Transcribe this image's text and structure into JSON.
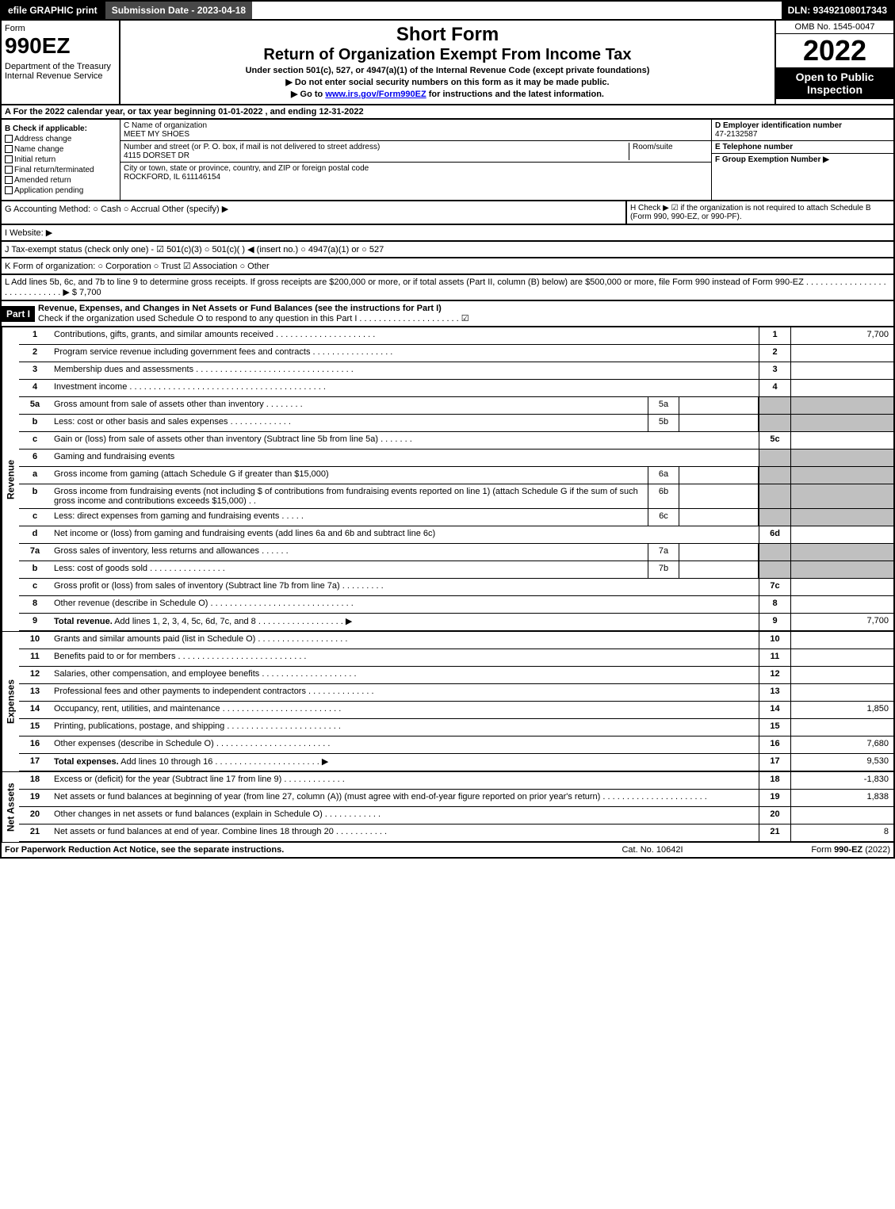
{
  "top": {
    "efile": "efile GRAPHIC print",
    "submission": "Submission Date - 2023-04-18",
    "dln": "DLN: 93492108017343"
  },
  "header": {
    "form_label": "Form",
    "form_number": "990EZ",
    "dept": "Department of the Treasury\nInternal Revenue Service",
    "title1": "Short Form",
    "title2": "Return of Organization Exempt From Income Tax",
    "subtitle": "Under section 501(c), 527, or 4947(a)(1) of the Internal Revenue Code (except private foundations)",
    "note1": "▶ Do not enter social security numbers on this form as it may be made public.",
    "note2": "▶ Go to www.irs.gov/Form990EZ for instructions and the latest information.",
    "omb": "OMB No. 1545-0047",
    "year": "2022",
    "open": "Open to Public Inspection"
  },
  "section_a": "A  For the 2022 calendar year, or tax year beginning 01-01-2022 , and ending 12-31-2022",
  "col_b": {
    "title": "B  Check if applicable:",
    "items": [
      "Address change",
      "Name change",
      "Initial return",
      "Final return/terminated",
      "Amended return",
      "Application pending"
    ]
  },
  "col_c": {
    "name_label": "C Name of organization",
    "name": "MEET MY SHOES",
    "addr_label": "Number and street (or P. O. box, if mail is not delivered to street address)",
    "addr": "4115 DORSET DR",
    "room_label": "Room/suite",
    "city_label": "City or town, state or province, country, and ZIP or foreign postal code",
    "city": "ROCKFORD, IL  611146154"
  },
  "col_d": {
    "d_label": "D Employer identification number",
    "d_val": "47-2132587",
    "e_label": "E Telephone number",
    "e_val": "",
    "f_label": "F Group Exemption Number  ▶",
    "f_val": ""
  },
  "line_g": "G Accounting Method:   ○ Cash   ○ Accrual   Other (specify) ▶",
  "line_h": "H  Check ▶ ☑ if the organization is not required to attach Schedule B (Form 990, 990-EZ, or 990-PF).",
  "line_i": "I Website: ▶",
  "line_j": "J Tax-exempt status (check only one) - ☑ 501(c)(3) ○ 501(c)( ) ◀ (insert no.) ○ 4947(a)(1) or ○ 527",
  "line_k": "K Form of organization:   ○ Corporation   ○ Trust   ☑ Association   ○ Other",
  "line_l": "L Add lines 5b, 6c, and 7b to line 9 to determine gross receipts. If gross receipts are $200,000 or more, or if total assets (Part II, column (B) below) are $500,000 or more, file Form 990 instead of Form 990-EZ . . . . . . . . . . . . . . . . . . . . . . . . . . . . . ▶ $ 7,700",
  "part1": {
    "header": "Part I",
    "title": "Revenue, Expenses, and Changes in Net Assets or Fund Balances (see the instructions for Part I)",
    "check": "Check if the organization used Schedule O to respond to any question in this Part I . . . . . . . . . . . . . . . . . . . . . ☑"
  },
  "rows": [
    {
      "n": "1",
      "d": "Contributions, gifts, grants, and similar amounts received . . . . . . . . . . . . . . . . . . . . .",
      "mn": "1",
      "mv": "7,700"
    },
    {
      "n": "2",
      "d": "Program service revenue including government fees and contracts . . . . . . . . . . . . . . . . .",
      "mn": "2",
      "mv": ""
    },
    {
      "n": "3",
      "d": "Membership dues and assessments . . . . . . . . . . . . . . . . . . . . . . . . . . . . . . . . .",
      "mn": "3",
      "mv": ""
    },
    {
      "n": "4",
      "d": "Investment income . . . . . . . . . . . . . . . . . . . . . . . . . . . . . . . . . . . . . . . . .",
      "mn": "4",
      "mv": ""
    },
    {
      "n": "5a",
      "d": "Gross amount from sale of assets other than inventory . . . . . . . .",
      "sn": "5a",
      "sv": "",
      "shaded": true
    },
    {
      "n": "b",
      "d": "Less: cost or other basis and sales expenses . . . . . . . . . . . . .",
      "sn": "5b",
      "sv": "",
      "shaded": true
    },
    {
      "n": "c",
      "d": "Gain or (loss) from sale of assets other than inventory (Subtract line 5b from line 5a) . . . . . . .",
      "mn": "5c",
      "mv": ""
    },
    {
      "n": "6",
      "d": "Gaming and fundraising events",
      "shaded": true
    },
    {
      "n": "a",
      "d": "Gross income from gaming (attach Schedule G if greater than $15,000)",
      "sn": "6a",
      "sv": "",
      "shaded": true
    },
    {
      "n": "b",
      "d": "Gross income from fundraising events (not including $                    of contributions from fundraising events reported on line 1) (attach Schedule G if the sum of such gross income and contributions exceeds $15,000)    . .",
      "sn": "6b",
      "sv": "",
      "shaded": true
    },
    {
      "n": "c",
      "d": "Less: direct expenses from gaming and fundraising events    . . . . .",
      "sn": "6c",
      "sv": "",
      "shaded": true
    },
    {
      "n": "d",
      "d": "Net income or (loss) from gaming and fundraising events (add lines 6a and 6b and subtract line 6c)",
      "mn": "6d",
      "mv": ""
    },
    {
      "n": "7a",
      "d": "Gross sales of inventory, less returns and allowances . . . . . .",
      "sn": "7a",
      "sv": "",
      "shaded": true
    },
    {
      "n": "b",
      "d": "Less: cost of goods sold        . . . . . . . . . . . . . . . .",
      "sn": "7b",
      "sv": "",
      "shaded": true
    },
    {
      "n": "c",
      "d": "Gross profit or (loss) from sales of inventory (Subtract line 7b from line 7a) . . . . . . . . .",
      "mn": "7c",
      "mv": ""
    },
    {
      "n": "8",
      "d": "Other revenue (describe in Schedule O) . . . . . . . . . . . . . . . . . . . . . . . . . . . . . .",
      "mn": "8",
      "mv": ""
    },
    {
      "n": "9",
      "d": "Total revenue. Add lines 1, 2, 3, 4, 5c, 6d, 7c, and 8 . . . . . . . . . . . . . . . . . . ▶",
      "mn": "9",
      "mv": "7,700",
      "bold": true
    }
  ],
  "expense_rows": [
    {
      "n": "10",
      "d": "Grants and similar amounts paid (list in Schedule O) . . . . . . . . . . . . . . . . . . .",
      "mn": "10",
      "mv": ""
    },
    {
      "n": "11",
      "d": "Benefits paid to or for members       . . . . . . . . . . . . . . . . . . . . . . . . . . .",
      "mn": "11",
      "mv": ""
    },
    {
      "n": "12",
      "d": "Salaries, other compensation, and employee benefits . . . . . . . . . . . . . . . . . . . .",
      "mn": "12",
      "mv": ""
    },
    {
      "n": "13",
      "d": "Professional fees and other payments to independent contractors . . . . . . . . . . . . . .",
      "mn": "13",
      "mv": ""
    },
    {
      "n": "14",
      "d": "Occupancy, rent, utilities, and maintenance . . . . . . . . . . . . . . . . . . . . . . . . .",
      "mn": "14",
      "mv": "1,850"
    },
    {
      "n": "15",
      "d": "Printing, publications, postage, and shipping . . . . . . . . . . . . . . . . . . . . . . . .",
      "mn": "15",
      "mv": ""
    },
    {
      "n": "16",
      "d": "Other expenses (describe in Schedule O)     . . . . . . . . . . . . . . . . . . . . . . . .",
      "mn": "16",
      "mv": "7,680"
    },
    {
      "n": "17",
      "d": "Total expenses. Add lines 10 through 16      . . . . . . . . . . . . . . . . . . . . . . ▶",
      "mn": "17",
      "mv": "9,530",
      "bold": true
    }
  ],
  "net_rows": [
    {
      "n": "18",
      "d": "Excess or (deficit) for the year (Subtract line 17 from line 9)       . . . . . . . . . . . . .",
      "mn": "18",
      "mv": "-1,830"
    },
    {
      "n": "19",
      "d": "Net assets or fund balances at beginning of year (from line 27, column (A)) (must agree with end-of-year figure reported on prior year's return) . . . . . . . . . . . . . . . . . . . . . .",
      "mn": "19",
      "mv": "1,838"
    },
    {
      "n": "20",
      "d": "Other changes in net assets or fund balances (explain in Schedule O) . . . . . . . . . . . .",
      "mn": "20",
      "mv": ""
    },
    {
      "n": "21",
      "d": "Net assets or fund balances at end of year. Combine lines 18 through 20 . . . . . . . . . . .",
      "mn": "21",
      "mv": "8"
    }
  ],
  "side_labels": {
    "revenue": "Revenue",
    "expenses": "Expenses",
    "net": "Net Assets"
  },
  "footer": {
    "left": "For Paperwork Reduction Act Notice, see the separate instructions.",
    "mid": "Cat. No. 10642I",
    "right": "Form 990-EZ (2022)"
  }
}
